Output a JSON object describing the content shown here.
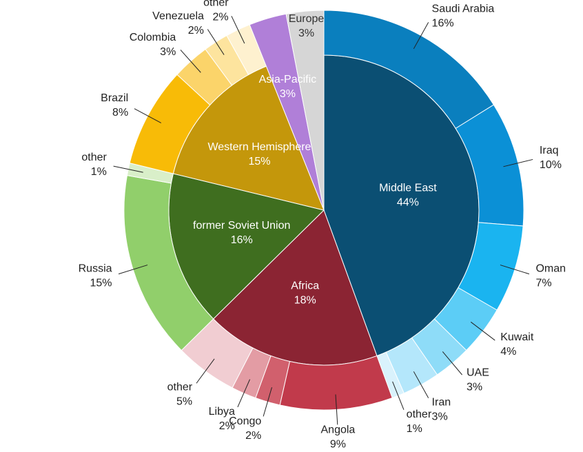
{
  "chart_data": {
    "type": "sunburst",
    "nodes": [
      {
        "name": "Middle East",
        "value": 44,
        "value_label": "44%",
        "color": "#0b4f73",
        "children": [
          {
            "name": "Saudi Arabia",
            "value": 16,
            "value_label": "16%",
            "color": "#0a7fbe"
          },
          {
            "name": "Iraq",
            "value": 10,
            "value_label": "10%",
            "color": "#0b90d6"
          },
          {
            "name": "Oman",
            "value": 7,
            "value_label": "7%",
            "color": "#1ab4f0"
          },
          {
            "name": "Kuwait",
            "value": 4,
            "value_label": "4%",
            "color": "#5ccdf6"
          },
          {
            "name": "UAE",
            "value": 3,
            "value_label": "3%",
            "color": "#8edcf8"
          },
          {
            "name": "Iran",
            "value": 3,
            "value_label": "3%",
            "color": "#b4e7fb"
          },
          {
            "name": "other",
            "value": 1,
            "value_label": "1%",
            "color": "#d9f2fc"
          }
        ]
      },
      {
        "name": "Africa",
        "value": 18,
        "value_label": "18%",
        "color": "#8b2433",
        "children": [
          {
            "name": "Angola",
            "value": 9,
            "value_label": "9%",
            "color": "#c13a4b"
          },
          {
            "name": "Congo",
            "value": 2,
            "value_label": "2%",
            "color": "#d1606d"
          },
          {
            "name": "Libya",
            "value": 2,
            "value_label": "2%",
            "color": "#e39ca4"
          },
          {
            "name": "other",
            "value": 5,
            "value_label": "5%",
            "color": "#f1cdd2"
          }
        ]
      },
      {
        "name": "former Soviet Union",
        "value": 16,
        "value_label": "16%",
        "color": "#3f6e1f",
        "children": [
          {
            "name": "Russia",
            "value": 15,
            "value_label": "15%",
            "color": "#91cf6b"
          },
          {
            "name": "other",
            "value": 1,
            "value_label": "1%",
            "color": "#d9efc9"
          }
        ]
      },
      {
        "name": "Western Hemisphere",
        "value": 15,
        "value_label": "15%",
        "color": "#c4970b",
        "children": [
          {
            "name": "Brazil",
            "value": 8,
            "value_label": "8%",
            "color": "#f8bb07"
          },
          {
            "name": "Colombia",
            "value": 3,
            "value_label": "3%",
            "color": "#fbd46a"
          },
          {
            "name": "Venezuela",
            "value": 2,
            "value_label": "2%",
            "color": "#fde49e"
          },
          {
            "name": "other",
            "value": 2,
            "value_label": "2%",
            "color": "#fef1cf"
          }
        ]
      },
      {
        "name": "Asia-Pacific",
        "value": 3,
        "value_label": "3%",
        "color": "#b07fd8",
        "children": []
      },
      {
        "name": "Europe",
        "value": 3,
        "value_label": "3%",
        "color": "#d6d6d6",
        "children": []
      }
    ]
  }
}
